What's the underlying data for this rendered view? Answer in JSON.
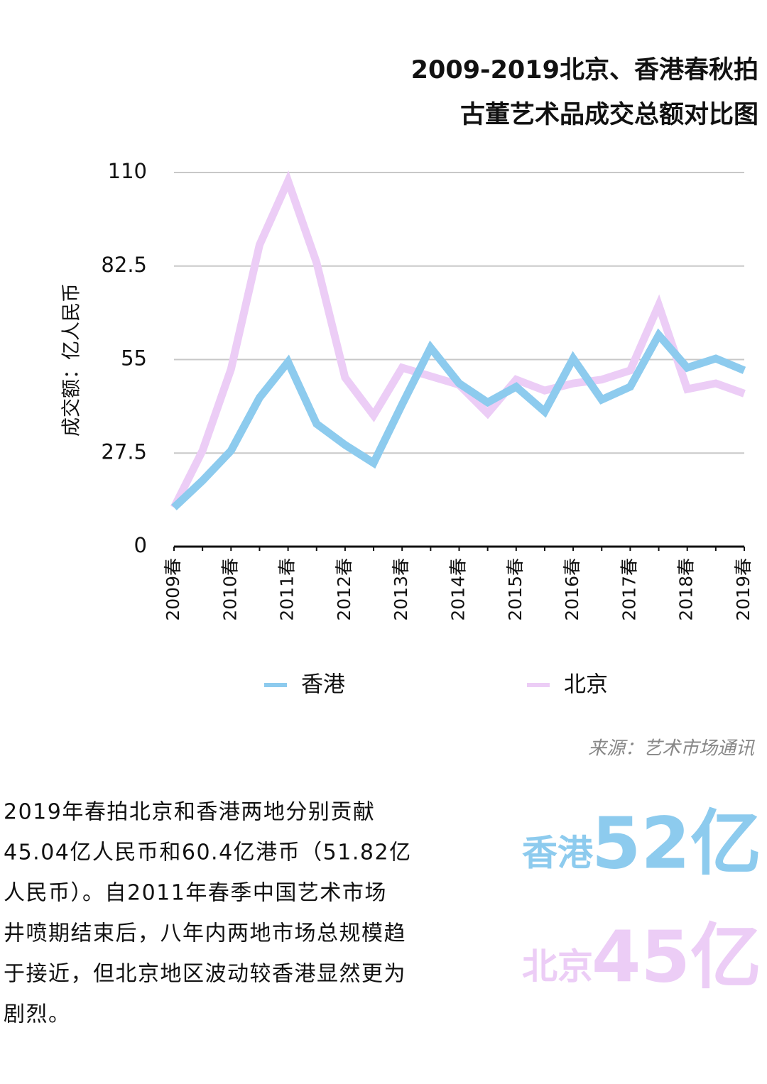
{
  "chart_data": {
    "type": "line",
    "title": [
      "2009-2019北京、香港春秋拍",
      "古董艺术品成交总额对比图"
    ],
    "y_label": "成交额：亿人民币",
    "categories": [
      "2009春",
      null,
      "2010春",
      null,
      "2011春",
      null,
      "2012春",
      null,
      "2013春",
      null,
      "2014春",
      null,
      "2015春",
      null,
      "2016春",
      null,
      "2017春",
      null,
      "2018春",
      null,
      "2019春"
    ],
    "series": [
      {
        "name": "香港",
        "color": "#8dcbee",
        "values": [
          11.5,
          19.4,
          28.2,
          43.8,
          54.3,
          36.1,
          29.9,
          24.6,
          41.8,
          58.5,
          48.0,
          42.4,
          47.0,
          39.7,
          55.3,
          43.2,
          47.0,
          62.2,
          52.6,
          55.3,
          51.8
        ]
      },
      {
        "name": "北京",
        "color": "#eccdf6",
        "values": [
          11.5,
          28.2,
          52.2,
          88.7,
          107.5,
          83.5,
          49.7,
          38.6,
          52.6,
          50.1,
          47.6,
          39.2,
          49.1,
          45.9,
          48.0,
          49.1,
          51.8,
          71.0,
          46.3,
          48.0,
          45.0
        ]
      }
    ],
    "ylim": [
      0,
      110
    ],
    "yticks": [
      0,
      27.5,
      55,
      82.5,
      110
    ],
    "grid": true
  },
  "source": "来源：艺术市场通讯",
  "paragraph": [
    "2019年春拍北京和香港两地分别贡献",
    "45.04亿人民币和60.4亿港币（51.82亿",
    "人民币）。自2011年春季中国艺术市场",
    "井喷期结束后，八年内两地市场总规模趋",
    "于接近，但北京地区波动较香港显然更为",
    "剧烈。"
  ],
  "highlights": [
    {
      "region": "香港",
      "amount": "52亿"
    },
    {
      "region": "北京",
      "amount": "45亿"
    }
  ]
}
